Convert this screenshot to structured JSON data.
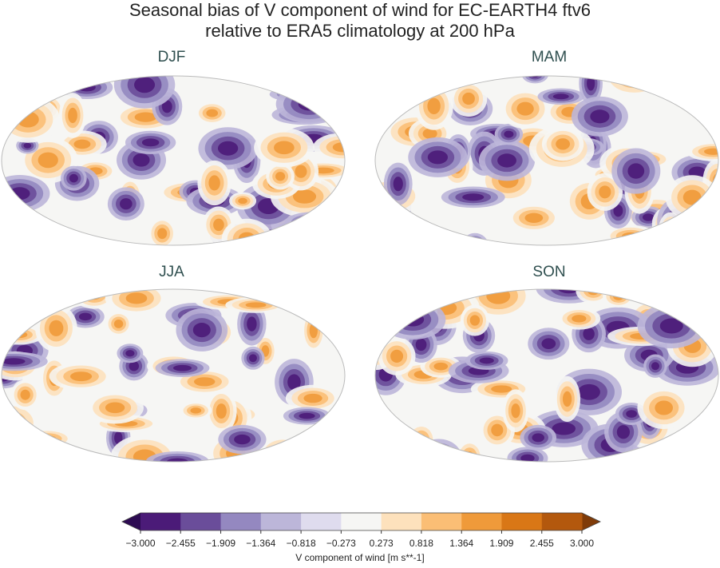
{
  "figure": {
    "title": [
      "Seasonal bias of V component of wind for EC-EARTH4 ftv6",
      "relative to ERA5 climatology at 200 hPa"
    ],
    "panels": [
      {
        "title": "DJF"
      },
      {
        "title": "MAM"
      },
      {
        "title": "JJA"
      },
      {
        "title": "SON"
      }
    ],
    "colorbar": {
      "label": "V component of wind [m s**-1]",
      "ticks": [
        {
          "value": -3.0,
          "label": "−3.000"
        },
        {
          "value": -2.455,
          "label": "−2.455"
        },
        {
          "value": -1.909,
          "label": "−1.909"
        },
        {
          "value": -1.364,
          "label": "−1.364"
        },
        {
          "value": -0.818,
          "label": "−0.818"
        },
        {
          "value": -0.273,
          "label": "−0.273"
        },
        {
          "value": 0.273,
          "label": "0.273"
        },
        {
          "value": 0.818,
          "label": "0.818"
        },
        {
          "value": 1.364,
          "label": "1.364"
        },
        {
          "value": 1.909,
          "label": "1.909"
        },
        {
          "value": 2.455,
          "label": "2.455"
        },
        {
          "value": 3.0,
          "label": "3.000"
        }
      ],
      "colors": [
        "#4b1b78",
        "#6a4d9a",
        "#9488c0",
        "#bcb6d9",
        "#dfdcee",
        "#f6f6f4",
        "#fde1bc",
        "#fbbe75",
        "#ef9a3a",
        "#d97716",
        "#b3580d"
      ],
      "under_color": "#2d0b52",
      "over_color": "#7f3b08"
    }
  }
}
